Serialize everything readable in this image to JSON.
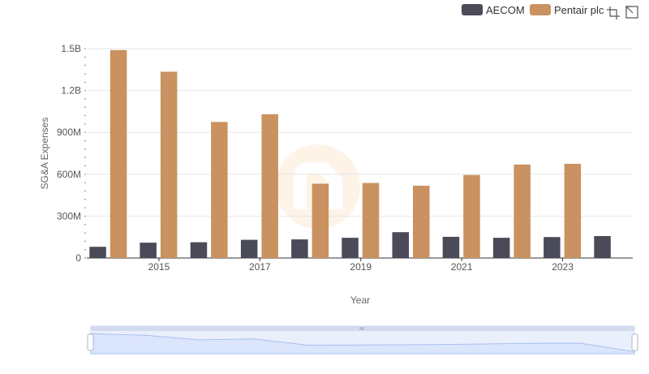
{
  "chart_data": {
    "type": "bar",
    "xlabel": "Year",
    "ylabel": "SG&A Expenses",
    "ylim": [
      0,
      1500000000
    ],
    "y_ticks": [
      {
        "value": 0,
        "label": "0"
      },
      {
        "value": 300000000,
        "label": "300M"
      },
      {
        "value": 600000000,
        "label": "600M"
      },
      {
        "value": 900000000,
        "label": "900M"
      },
      {
        "value": 1200000000,
        "label": "1.2B"
      },
      {
        "value": 1500000000,
        "label": "1.5B"
      }
    ],
    "categories": [
      "2014",
      "2015",
      "2016",
      "2017",
      "2018",
      "2019",
      "2020",
      "2021",
      "2022",
      "2023",
      "2024"
    ],
    "x_tick_labels": [
      {
        "category": "2015",
        "label": "2015"
      },
      {
        "category": "2017",
        "label": "2017"
      },
      {
        "category": "2019",
        "label": "2019"
      },
      {
        "category": "2021",
        "label": "2021"
      },
      {
        "category": "2023",
        "label": "2023"
      }
    ],
    "series": [
      {
        "name": "AECOM",
        "color": "#4a4a58",
        "values": [
          80000000,
          110000000,
          113000000,
          130000000,
          133000000,
          145000000,
          185000000,
          152000000,
          145000000,
          150000000,
          157000000
        ]
      },
      {
        "name": "Pentair plc",
        "color": "#c99260",
        "values": [
          1490000000,
          1335000000,
          975000000,
          1030000000,
          532000000,
          538000000,
          518000000,
          595000000,
          670000000,
          675000000,
          null
        ]
      }
    ],
    "legend": {
      "position": "top-right"
    },
    "grid": true
  },
  "overview": {
    "line_color": "#a8c0f0",
    "fill_color": "#dbe5fb"
  }
}
